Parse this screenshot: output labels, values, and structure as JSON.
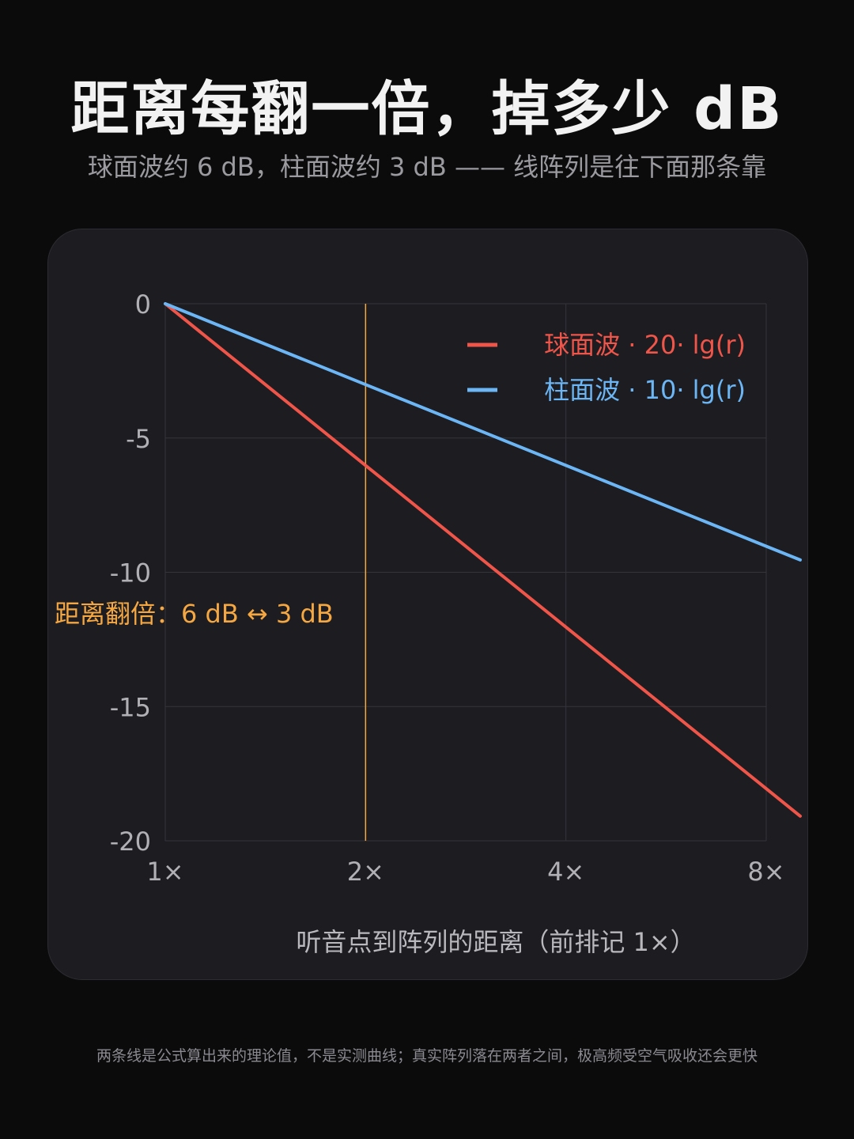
{
  "header": {
    "title": "距离每翻一倍，掉多少 dB",
    "subtitle": "球面波约 6 dB，柱面波约 3 dB —— 线阵列是往下面那条靠"
  },
  "footer": {
    "note": "两条线是公式算出来的理论值，不是实测曲线；真实阵列落在两者之间，极高频受空气吸收还会更快"
  },
  "chart_data": {
    "type": "line",
    "title": "",
    "xlabel": "听音点到阵列的距离（前排记 1×）",
    "ylabel": "",
    "x_scale": "log2",
    "x_ticks": [
      1,
      2,
      4,
      8
    ],
    "x_tick_labels": [
      "1×",
      "2×",
      "4×",
      "8×"
    ],
    "xlim": [
      1,
      9
    ],
    "y_ticks": [
      0,
      -5,
      -10,
      -15,
      -20
    ],
    "y_tick_labels": [
      "0",
      "-5",
      "-10",
      "-15",
      "-20"
    ],
    "ylim": [
      -20,
      0
    ],
    "grid": true,
    "legend_position": "top-right",
    "series": [
      {
        "name": "球面波 ·  20· lg(r)",
        "color": "#f0554a",
        "x": [
          1,
          2,
          4,
          8,
          9
        ],
        "values": [
          0,
          -6.02,
          -12.04,
          -18.06,
          -19.08
        ]
      },
      {
        "name": "柱面波 ·  10· lg(r)",
        "color": "#6cb6f5",
        "x": [
          1,
          2,
          4,
          8,
          9
        ],
        "values": [
          0,
          -3.01,
          -6.02,
          -9.03,
          -9.54
        ]
      }
    ],
    "annotation": {
      "text": "距离翻倍：6 dB ↔ 3 dB",
      "x": 2,
      "color": "#f5a742"
    },
    "colors": {
      "grid": "#34343b",
      "tick_text": "#b0b0b5",
      "axis_label": "#b8b8bd"
    }
  }
}
